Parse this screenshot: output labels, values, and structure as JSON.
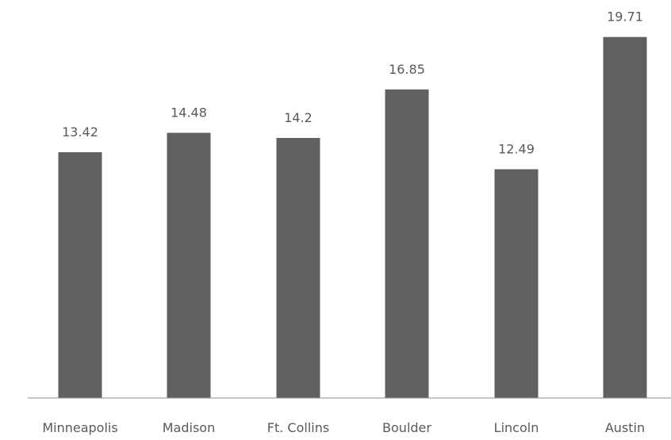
{
  "chart_data": {
    "type": "bar",
    "categories": [
      "Minneapolis",
      "Madison",
      "Ft. Collins",
      "Boulder",
      "Lincoln",
      "Austin"
    ],
    "values": [
      13.42,
      14.48,
      14.2,
      16.85,
      12.49,
      19.71
    ],
    "value_labels": [
      "13.42",
      "14.48",
      "14.2",
      "16.85",
      "12.49",
      "19.71"
    ],
    "ylim": [
      0,
      20
    ],
    "grid": false,
    "legend": "none",
    "bar_color": "#5f615f"
  }
}
